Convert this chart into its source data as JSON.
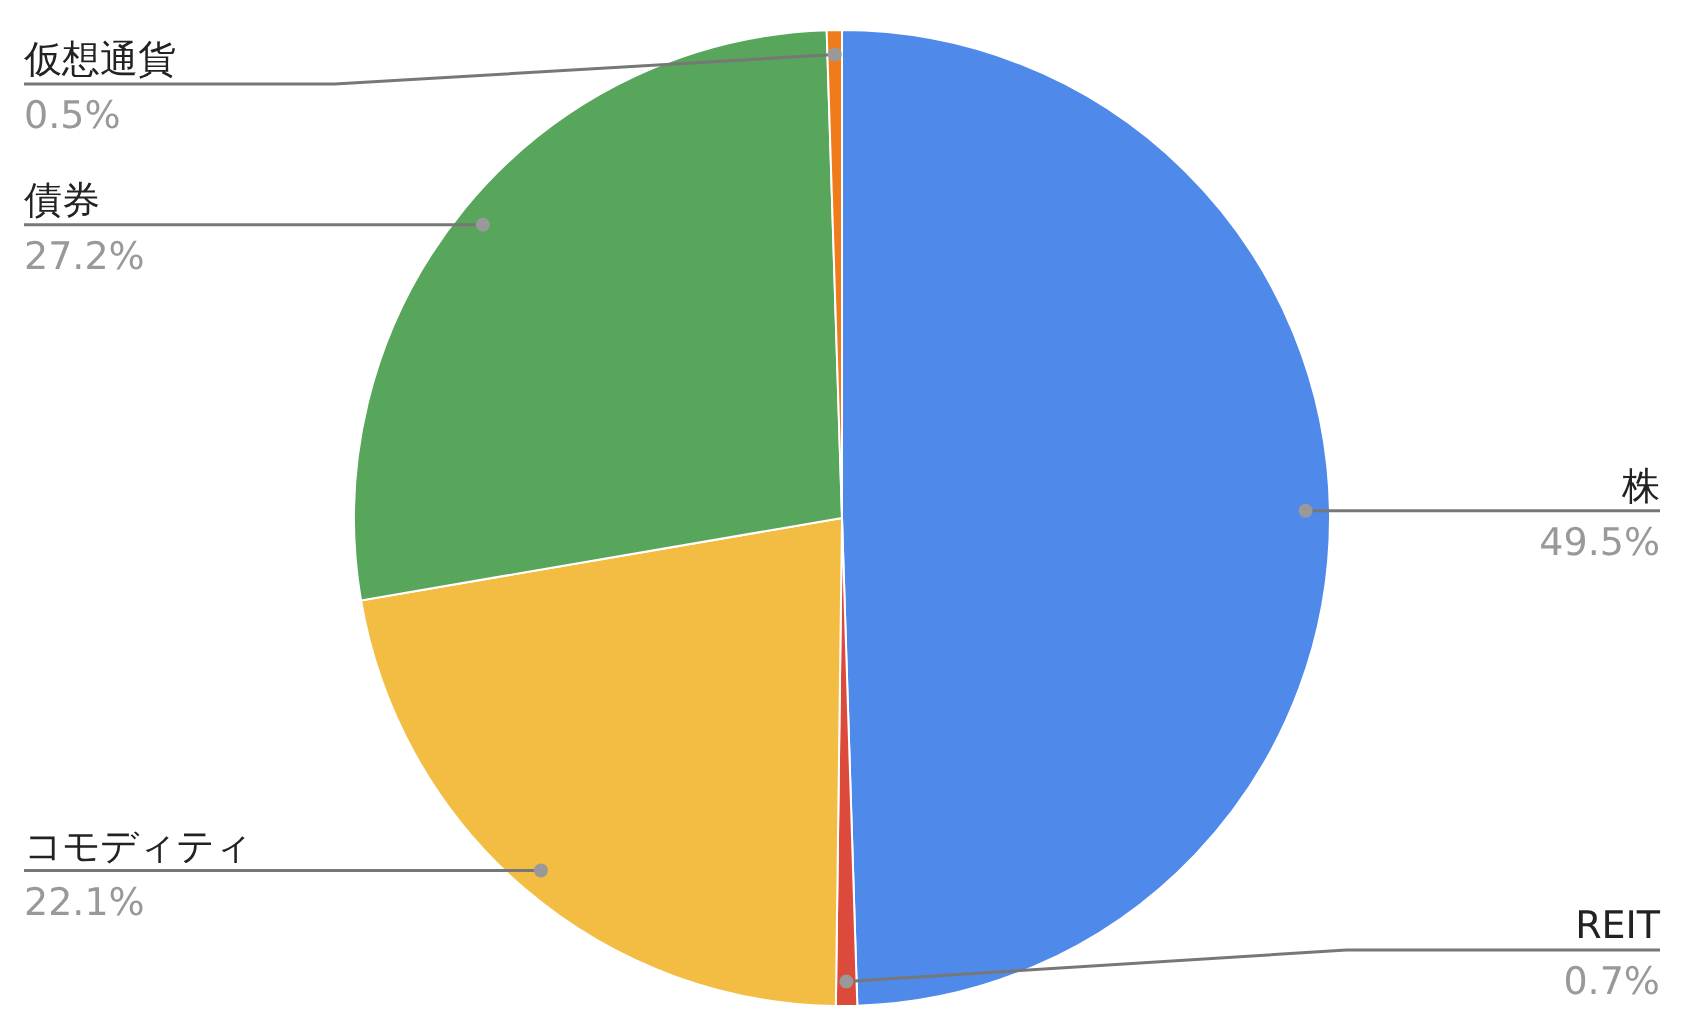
{
  "chart_data": {
    "type": "pie",
    "categories": [
      "株",
      "REIT",
      "コモディティ",
      "債券",
      "仮想通貨"
    ],
    "values": [
      49.5,
      0.7,
      22.1,
      27.2,
      0.5
    ],
    "value_labels": [
      "49.5%",
      "0.7%",
      "22.1%",
      "27.2%",
      "0.5%"
    ],
    "colors": [
      "#4f89ea",
      "#dc4a3c",
      "#f2bd42",
      "#58a55c",
      "#f07b1a"
    ]
  }
}
